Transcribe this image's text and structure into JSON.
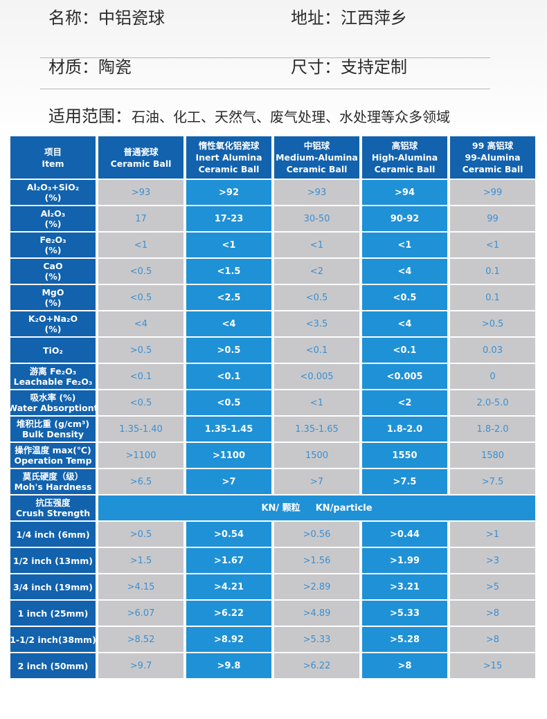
{
  "info": {
    "name": "名称：中铝瓷球",
    "address": "地址：江西萍乡",
    "material": "材质：陶瓷",
    "size": "尺寸：支持定制",
    "scope_label": "适用范围：",
    "scope_value": "石油、化工、天然气、废气处理、水处理等众多领域"
  },
  "colors": {
    "header_bg": "#1262ad",
    "highlight_bg": "#1f91d6",
    "gray_bg": "#c8c8ca",
    "gray_text": "#3b8fd2"
  },
  "table": {
    "headers": [
      [
        "项目",
        "Item"
      ],
      [
        "普通瓷球",
        "Ceramic Ball"
      ],
      [
        "惰性氧化铝瓷球",
        "Inert Alumina",
        "Ceramic Ball"
      ],
      [
        "中铝球",
        "Medium-Alumina",
        "Ceramic Ball"
      ],
      [
        "高铝球",
        "High-Alumina",
        "Ceramic Ball"
      ],
      [
        "99 高铝球",
        "99-Alumina",
        "Ceramic Ball"
      ]
    ],
    "rows": [
      {
        "label": [
          "Al₂O₃+SiO₂",
          "(%)"
        ],
        "values": [
          ">93",
          ">92",
          ">93",
          ">94",
          ">99"
        ]
      },
      {
        "label": [
          "Al₂O₃",
          "(%)"
        ],
        "values": [
          "17",
          "17-23",
          "30-50",
          "90-92",
          "99"
        ]
      },
      {
        "label": [
          "Fe₂O₃",
          "(%)"
        ],
        "values": [
          "<1",
          "<1",
          "<1",
          "<1",
          "<1"
        ]
      },
      {
        "label": [
          "CaO",
          "(%)"
        ],
        "values": [
          "<0.5",
          "<1.5",
          "<2",
          "<4",
          "0.1"
        ]
      },
      {
        "label": [
          "MgO",
          "(%)"
        ],
        "values": [
          "<0.5",
          "<2.5",
          "<0.5",
          "<0.5",
          "0.1"
        ]
      },
      {
        "label": [
          "K₂O+Na₂O",
          "(%)"
        ],
        "values": [
          "<4",
          "<4",
          "<3.5",
          "<4",
          ">0.5"
        ]
      },
      {
        "label": [
          "TiO₂"
        ],
        "values": [
          ">0.5",
          ">0.5",
          "<0.1",
          "<0.1",
          "0.03"
        ]
      },
      {
        "label": [
          "游离 Fe₂O₃",
          "Leachable Fe₂O₃"
        ],
        "values": [
          "<0.1",
          "<0.1",
          "<0.005",
          "<0.005",
          "0"
        ]
      },
      {
        "label": [
          "吸水率 (%)",
          "Water Absorptiont"
        ],
        "values": [
          "<0.5",
          "<0.5",
          "<1",
          "<2",
          "2.0-5.0"
        ]
      },
      {
        "label": [
          "堆积比重 (g/cm³)",
          "Bulk Density"
        ],
        "values": [
          "1.35-1.40",
          "1.35-1.45",
          "1.35-1.65",
          "1.8-2.0",
          "1.8-2.0"
        ]
      },
      {
        "label": [
          "操作温度 max(℃)",
          "Operation Temp"
        ],
        "values": [
          ">1100",
          ">1100",
          "1500",
          "1550",
          "1580"
        ]
      },
      {
        "label": [
          "莫氏硬度（级）",
          "Moh's Hardness"
        ],
        "values": [
          ">6.5",
          ">7",
          ">7",
          ">7.5",
          ">7.5"
        ]
      }
    ],
    "crush": {
      "label": [
        "抗压强度",
        "Crush Strength"
      ],
      "unit_cn": "KN/ 颗粒",
      "unit_en": "KN/particle"
    },
    "crush_rows": [
      {
        "label": [
          "1/4 inch  (6mm)"
        ],
        "values": [
          ">0.5",
          ">0.54",
          ">0.56",
          ">0.44",
          ">1"
        ]
      },
      {
        "label": [
          "1/2 inch (13mm)"
        ],
        "values": [
          ">1.5",
          ">1.67",
          ">1.56",
          ">1.99",
          ">3"
        ]
      },
      {
        "label": [
          "3/4 inch (19mm)"
        ],
        "values": [
          ">4.15",
          ">4.21",
          ">2.89",
          ">3.21",
          ">5"
        ]
      },
      {
        "label": [
          "1 inch  (25mm)"
        ],
        "values": [
          ">6.07",
          ">6.22",
          ">4.89",
          ">5.33",
          ">8"
        ]
      },
      {
        "label": [
          "1-1/2 inch(38mm)"
        ],
        "values": [
          ">8.52",
          ">8.92",
          ">5.33",
          ">5.28",
          ">8"
        ]
      },
      {
        "label": [
          "2 inch  (50mm)"
        ],
        "values": [
          ">9.7",
          ">9.8",
          ">6.22",
          ">8",
          ">15"
        ]
      }
    ]
  }
}
